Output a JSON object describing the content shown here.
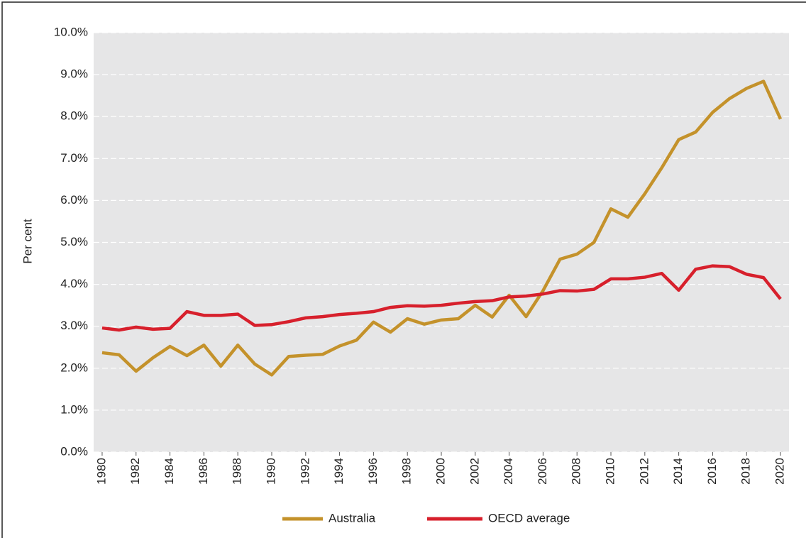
{
  "chart_data": {
    "type": "line",
    "y_label": "Per cent",
    "x": [
      1980,
      1981,
      1982,
      1983,
      1984,
      1985,
      1986,
      1987,
      1988,
      1989,
      1990,
      1991,
      1992,
      1993,
      1994,
      1995,
      1996,
      1997,
      1998,
      1999,
      2000,
      2001,
      2002,
      2003,
      2004,
      2005,
      2006,
      2007,
      2008,
      2009,
      2010,
      2011,
      2012,
      2013,
      2014,
      2015,
      2016,
      2017,
      2018,
      2019,
      2020
    ],
    "series": [
      {
        "name": "Australia",
        "color": "#c4922b",
        "values": [
          2.37,
          2.32,
          1.93,
          2.25,
          2.52,
          2.3,
          2.55,
          2.05,
          2.55,
          2.1,
          1.84,
          2.28,
          2.31,
          2.33,
          2.53,
          2.67,
          3.1,
          2.86,
          3.18,
          3.05,
          3.15,
          3.18,
          3.5,
          3.22,
          3.74,
          3.23,
          3.85,
          4.6,
          4.72,
          5.0,
          5.8,
          5.6,
          6.16,
          6.78,
          7.45,
          7.63,
          8.1,
          8.43,
          8.67,
          8.84,
          7.94
        ]
      },
      {
        "name": "OECD average",
        "color": "#d7202c",
        "values": [
          2.96,
          2.91,
          2.98,
          2.93,
          2.95,
          3.35,
          3.26,
          3.26,
          3.29,
          3.02,
          3.04,
          3.11,
          3.2,
          3.23,
          3.28,
          3.31,
          3.35,
          3.45,
          3.49,
          3.48,
          3.5,
          3.55,
          3.59,
          3.61,
          3.7,
          3.72,
          3.77,
          3.85,
          3.84,
          3.88,
          4.13,
          4.13,
          4.17,
          4.26,
          3.86,
          4.36,
          4.44,
          4.42,
          4.24,
          4.16,
          3.65
        ]
      }
    ],
    "xlim": [
      1979.5,
      2020.5
    ],
    "xticks": [
      1980,
      1982,
      1984,
      1986,
      1988,
      1990,
      1992,
      1994,
      1996,
      1998,
      2000,
      2002,
      2004,
      2006,
      2008,
      2010,
      2012,
      2014,
      2016,
      2018,
      2020
    ],
    "ylim": [
      0,
      10
    ],
    "yticks": [
      {
        "value": 0,
        "label": "0.0%"
      },
      {
        "value": 1,
        "label": "1.0%"
      },
      {
        "value": 2,
        "label": "2.0%"
      },
      {
        "value": 3,
        "label": "3.0%"
      },
      {
        "value": 4,
        "label": "4.0%"
      },
      {
        "value": 5,
        "label": "5.0%"
      },
      {
        "value": 6,
        "label": "6.0%"
      },
      {
        "value": 7,
        "label": "7.0%"
      },
      {
        "value": 8,
        "label": "8.0%"
      },
      {
        "value": 9,
        "label": "9.0%"
      },
      {
        "value": 10,
        "label": "10.0%"
      }
    ],
    "grid": true,
    "legend": "bottom"
  }
}
